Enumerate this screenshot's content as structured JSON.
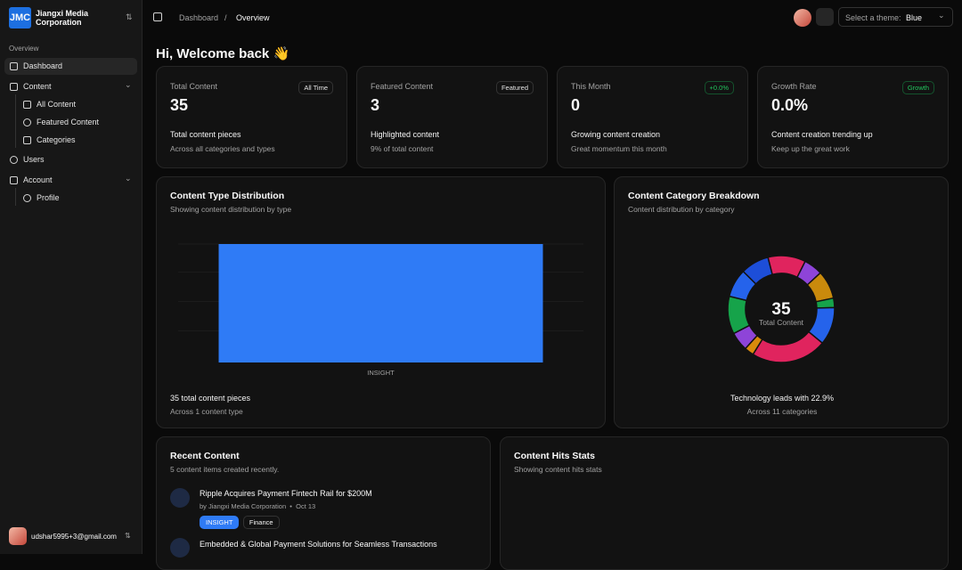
{
  "sidebar": {
    "logo": "JMC",
    "org": "Jiangxi Media Corporation",
    "section": "Overview",
    "nav": [
      "Dashboard",
      "Content",
      "All Content",
      "Featured Content",
      "Categories",
      "Users",
      "Account",
      "Profile"
    ],
    "user": "udshar5995+3@gmail.com"
  },
  "header": {
    "breadcrumb": [
      "Dashboard",
      "Overview"
    ],
    "theme_label": "Select a theme:",
    "theme_value": "Blue"
  },
  "greeting": "Hi, Welcome back 👋",
  "stats": [
    {
      "label": "Total Content",
      "badge": "All Time",
      "value": 35,
      "caption": "Total content pieces",
      "note": "Across all categories and types"
    },
    {
      "label": "Featured Content",
      "badge": "Featured",
      "value": 3,
      "caption": "Highlighted content",
      "note": "9% of total content"
    },
    {
      "label": "This Month",
      "badge": "+0.0%",
      "value": 0,
      "caption": "Growing content creation",
      "note": "Great momentum this month"
    },
    {
      "label": "Growth Rate",
      "badge": "Growth",
      "value": "0.0%",
      "caption": "Content creation trending up",
      "note": "Keep up the great work"
    }
  ],
  "chart_data": [
    {
      "type": "bar",
      "title": "Content Type Distribution",
      "subtitle": "Showing content distribution by type",
      "categories": [
        "INSIGHT"
      ],
      "values": [
        35
      ],
      "color": "#2f7bf6",
      "ylim": [
        0,
        35
      ],
      "grid": true,
      "footer": "35 total content pieces",
      "footnote": "Across 1 content type"
    },
    {
      "type": "pie",
      "title": "Content Category Breakdown",
      "subtitle": "Content distribution by category",
      "values": [
        4,
        2,
        3,
        1,
        4,
        8,
        1,
        2,
        4,
        3,
        3
      ],
      "colors": [
        "#e0245e",
        "#8e44d8",
        "#c98a0c",
        "#16a34a",
        "#2563eb",
        "#e0245e",
        "#d98a0c",
        "#8e44d8",
        "#16a34a",
        "#2563eb",
        "#1d4ed8"
      ],
      "center_value": 35,
      "center_label": "Total Content",
      "footer": "Technology leads with 22.9%",
      "footnote": "Across 11 categories"
    }
  ],
  "recent": {
    "title": "Recent Content",
    "subtitle": "5 content items created recently.",
    "items": [
      {
        "title": "Ripple Acquires Payment Fintech Rail for $200M",
        "author": "by Jiangxi Media Corporation",
        "date": "Oct 13",
        "tags": [
          "INSIGHT",
          "Finance"
        ]
      },
      {
        "title": "Embedded & Global Payment Solutions for Seamless Transactions"
      }
    ]
  },
  "hits": {
    "title": "Content Hits Stats",
    "subtitle": "Showing content hits stats"
  }
}
